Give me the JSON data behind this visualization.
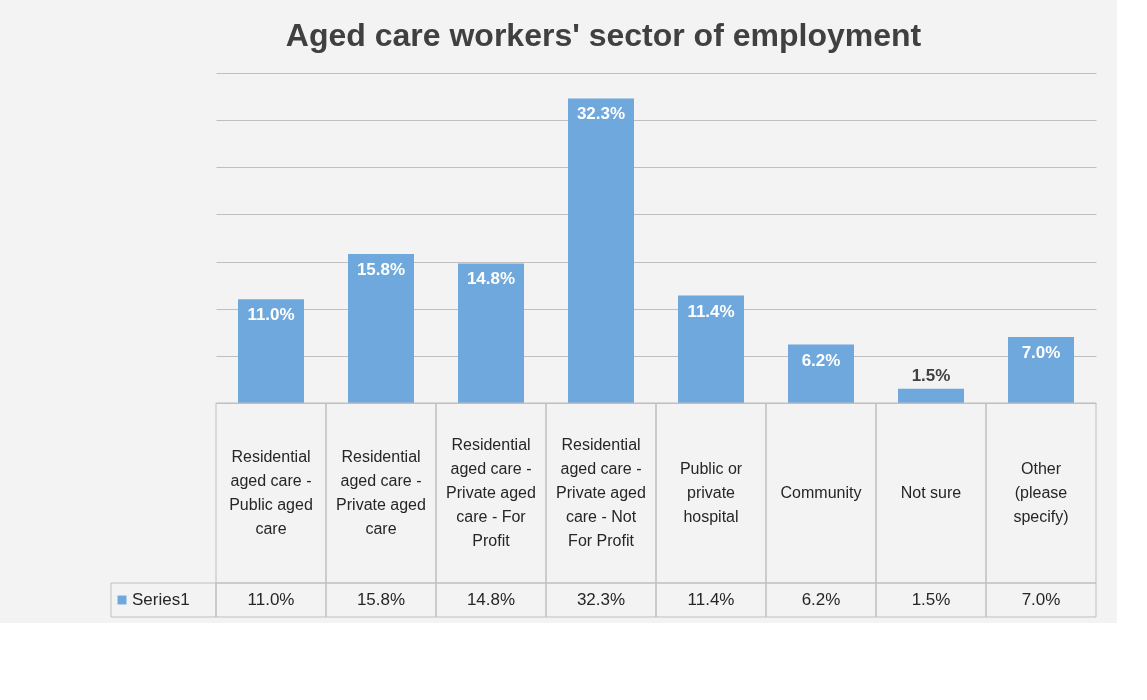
{
  "chart_data": {
    "type": "bar",
    "title": "Aged care workers' sector of employment",
    "categories": [
      "Residential aged care - Public aged care",
      "Residential aged care - Private aged care",
      "Residential aged care - Private aged care - For Profit",
      "Residential aged care - Private aged care - Not For Profit",
      "Public or private hospital",
      "Community",
      "Not sure",
      "Other (please specify)"
    ],
    "series": [
      {
        "name": "Series1",
        "color": "#6fa8dc",
        "values": [
          11.0,
          15.8,
          14.8,
          32.3,
          11.4,
          6.2,
          1.5,
          7.0
        ],
        "value_labels": [
          "11.0%",
          "15.8%",
          "14.8%",
          "32.3%",
          "11.4%",
          "6.2%",
          "1.5%",
          "7.0%"
        ]
      }
    ],
    "ylim": [
      0,
      35
    ],
    "yticks": [
      0,
      5,
      10,
      15,
      20,
      25,
      30,
      35
    ],
    "grid": "y",
    "tick_labels": "x",
    "legend": "bottom"
  }
}
